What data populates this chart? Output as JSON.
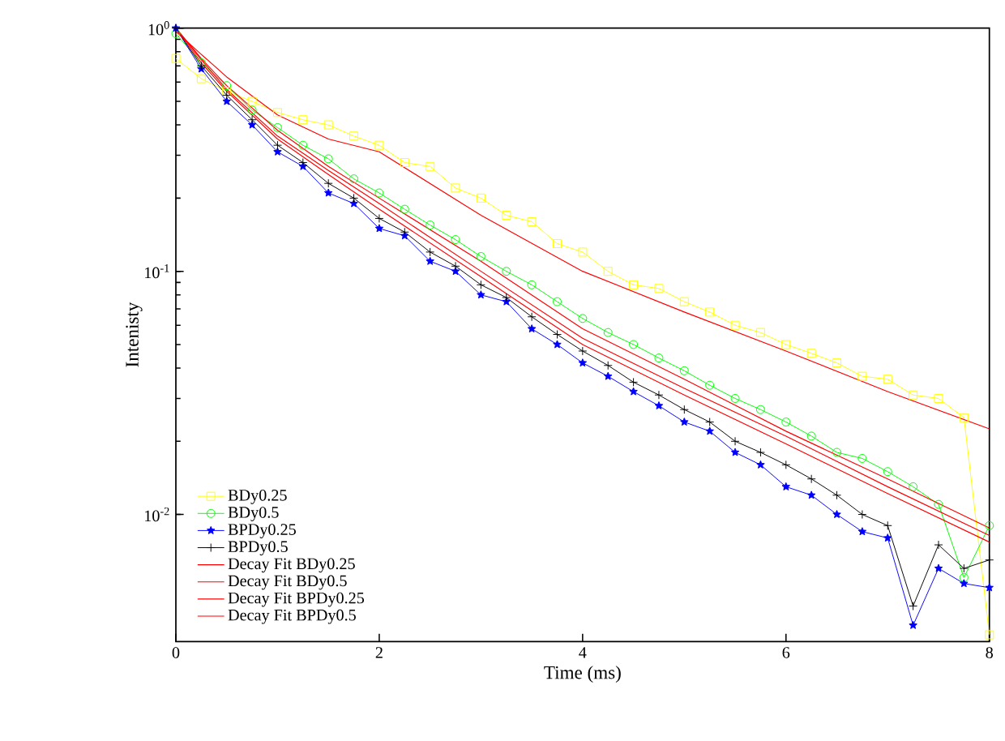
{
  "chart_data": {
    "type": "line",
    "xlabel": "Time (ms)",
    "ylabel": "Intenisty",
    "log": "y",
    "legend": "bottom left",
    "grid": false,
    "xlim": [
      0,
      8
    ],
    "xticks": [
      0,
      2,
      4,
      6,
      8
    ],
    "ylim": [
      0.003,
      1
    ],
    "yticks": [
      {
        "value": 0.01,
        "label": "10$^{-2}$"
      },
      {
        "value": 0.1,
        "label": "10$^{-1}$"
      },
      {
        "value": 1,
        "label": "10$^{0}$"
      }
    ],
    "x": [
      0,
      0.25,
      0.5,
      0.75,
      1,
      1.25,
      1.5,
      1.75,
      2,
      2.25,
      2.5,
      2.75,
      3,
      3.25,
      3.5,
      3.75,
      4,
      4.25,
      4.5,
      4.75,
      5,
      5.25,
      5.5,
      5.75,
      6,
      6.25,
      6.5,
      6.75,
      7,
      7.25,
      7.5,
      7.75,
      8
    ],
    "series": [
      {
        "name": "BDy0.25",
        "color": "#ffff00",
        "marker": "square",
        "values": [
          0.75,
          0.62,
          0.55,
          0.5,
          0.45,
          0.42,
          0.4,
          0.36,
          0.33,
          0.28,
          0.27,
          0.22,
          0.2,
          0.17,
          0.16,
          0.13,
          0.12,
          0.1,
          0.088,
          0.085,
          0.075,
          0.068,
          0.06,
          0.056,
          0.05,
          0.046,
          0.042,
          0.037,
          0.036,
          0.031,
          0.03,
          0.025,
          0.0032
        ]
      },
      {
        "name": "BDy0.5",
        "color": "#00ff00",
        "marker": "circle",
        "values": [
          0.95,
          0.72,
          0.58,
          0.46,
          0.39,
          0.33,
          0.29,
          0.24,
          0.21,
          0.18,
          0.155,
          0.135,
          0.115,
          0.1,
          0.088,
          0.075,
          0.064,
          0.056,
          0.05,
          0.044,
          0.039,
          0.034,
          0.03,
          0.027,
          0.024,
          0.021,
          0.018,
          0.017,
          0.015,
          0.013,
          0.011,
          0.0055,
          0.009
        ]
      },
      {
        "name": "BPDy0.25",
        "color": "#0000ff",
        "marker": "star",
        "values": [
          1.0,
          0.68,
          0.5,
          0.4,
          0.31,
          0.27,
          0.21,
          0.19,
          0.15,
          0.14,
          0.11,
          0.1,
          0.08,
          0.075,
          0.058,
          0.05,
          0.042,
          0.037,
          0.032,
          0.028,
          0.024,
          0.022,
          0.018,
          0.016,
          0.013,
          0.012,
          0.01,
          0.0085,
          0.008,
          0.0035,
          0.006,
          0.0052,
          0.005
        ]
      },
      {
        "name": "BPDy0.5",
        "color": "#000000",
        "marker": "cross",
        "values": [
          1.0,
          0.7,
          0.53,
          0.42,
          0.33,
          0.28,
          0.23,
          0.2,
          0.165,
          0.145,
          0.12,
          0.105,
          0.088,
          0.078,
          0.065,
          0.055,
          0.047,
          0.041,
          0.035,
          0.031,
          0.027,
          0.024,
          0.02,
          0.018,
          0.016,
          0.014,
          0.012,
          0.01,
          0.009,
          0.0042,
          0.0075,
          0.006,
          0.0065
        ]
      },
      {
        "name": "Decay Fit BDy0.25",
        "color": "#ff0000",
        "marker": "none",
        "x": [
          0,
          0.25,
          0.5,
          1,
          1.5,
          2,
          3,
          4,
          5,
          6,
          7,
          8
        ],
        "values": [
          0.97,
          0.78,
          0.63,
          0.44,
          0.35,
          0.31,
          0.17,
          0.1,
          0.068,
          0.047,
          0.032,
          0.0225
        ]
      },
      {
        "name": "Decay Fit BDy0.5",
        "color": "#ff0000",
        "marker": "none",
        "x": [
          0,
          0.25,
          0.5,
          1,
          1.5,
          2,
          3,
          4,
          5,
          6,
          7,
          8
        ],
        "values": [
          1.0,
          0.75,
          0.58,
          0.38,
          0.27,
          0.2,
          0.11,
          0.058,
          0.036,
          0.022,
          0.014,
          0.0088
        ]
      },
      {
        "name": "Decay Fit BPDy0.25",
        "color": "#ff0000",
        "marker": "none",
        "x": [
          0,
          0.25,
          0.5,
          1,
          1.5,
          2,
          3,
          4,
          5,
          6,
          7,
          8
        ],
        "values": [
          1.0,
          0.74,
          0.56,
          0.36,
          0.26,
          0.19,
          0.1,
          0.053,
          0.033,
          0.021,
          0.013,
          0.0082
        ]
      },
      {
        "name": "Decay Fit BPDy0.5",
        "color": "#ff0000",
        "marker": "none",
        "x": [
          0,
          0.25,
          0.5,
          1,
          1.5,
          2,
          3,
          4,
          5,
          6,
          7,
          8
        ],
        "values": [
          1.0,
          0.72,
          0.55,
          0.35,
          0.25,
          0.18,
          0.095,
          0.05,
          0.031,
          0.0195,
          0.0122,
          0.0077
        ]
      }
    ]
  }
}
